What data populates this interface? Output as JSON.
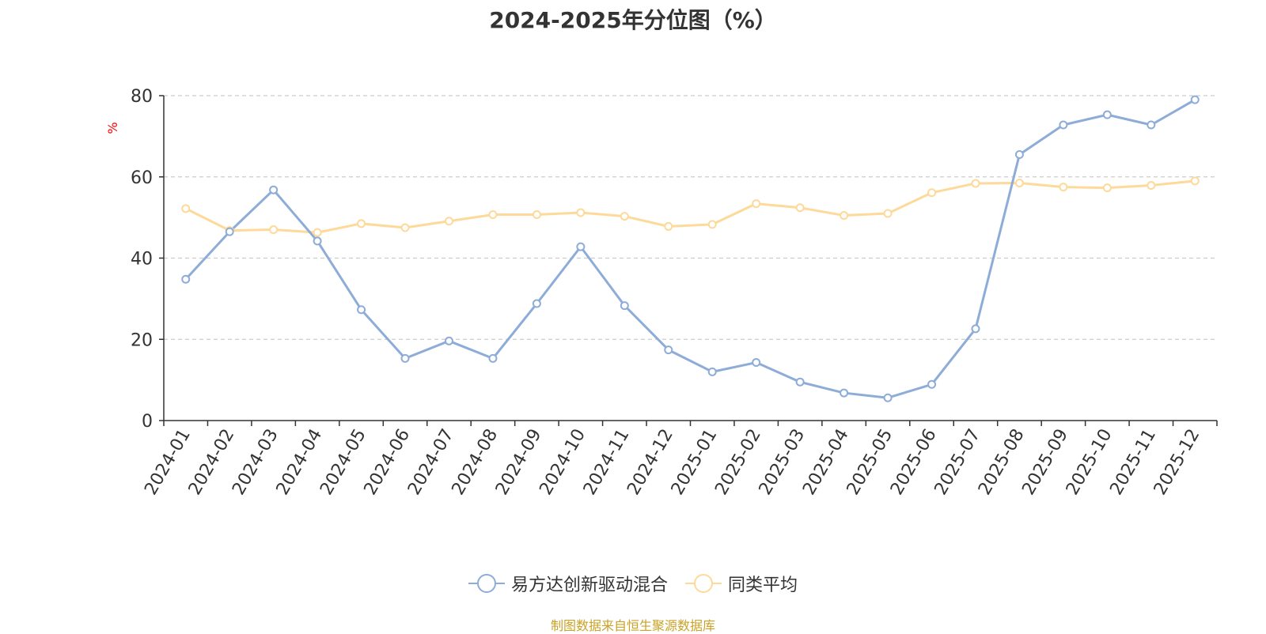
{
  "colors": {
    "series1": "#8eacd8",
    "series2": "#fdd99a",
    "axis": "#333333",
    "grid": "#cccccc",
    "unit": "#ff0000",
    "source": "#c9a227"
  },
  "chart_data": {
    "type": "line",
    "title": "2024-2025年分位图（%）",
    "ylabel": "%",
    "xlabel": "",
    "ylim": [
      0,
      80
    ],
    "yticks": [
      0,
      20,
      40,
      60,
      80
    ],
    "grid": true,
    "legend_position": "bottom-center",
    "categories": [
      "2024-01",
      "2024-02",
      "2024-03",
      "2024-04",
      "2024-05",
      "2024-06",
      "2024-07",
      "2024-08",
      "2024-09",
      "2024-10",
      "2024-11",
      "2024-12",
      "2025-01",
      "2025-02",
      "2025-03",
      "2025-04",
      "2025-05",
      "2025-06",
      "2025-07",
      "2025-08",
      "2025-09",
      "2025-10",
      "2025-11",
      "2025-12"
    ],
    "series": [
      {
        "name": "易方达创新驱动混合",
        "values": [
          34.8,
          46.5,
          56.8,
          44.2,
          27.3,
          15.3,
          19.6,
          15.3,
          28.8,
          42.8,
          28.3,
          17.4,
          12.0,
          14.3,
          9.5,
          6.8,
          5.6,
          8.9,
          22.6,
          65.5,
          72.8,
          75.3,
          72.8,
          79.0
        ]
      },
      {
        "name": "同类平均",
        "values": [
          52.2,
          46.8,
          47.0,
          46.3,
          48.5,
          47.5,
          49.1,
          50.7,
          50.7,
          51.2,
          50.3,
          47.8,
          48.3,
          53.4,
          52.4,
          50.5,
          51.0,
          56.1,
          58.4,
          58.5,
          57.5,
          57.3,
          57.9,
          59.0
        ]
      }
    ],
    "source": "制图数据来自恒生聚源数据库"
  }
}
